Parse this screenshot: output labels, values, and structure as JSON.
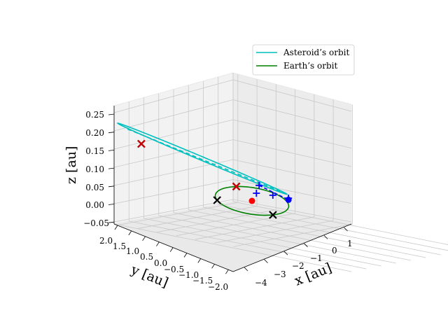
{
  "chart_data": {
    "type": "line3d",
    "title": "",
    "xlabel": "$x$ [au]",
    "ylabel": "$y$ [au]",
    "zlabel": "$z$ [au]",
    "x_label_text": "x [au]",
    "y_label_text": "y [au]",
    "z_label_text": "z [au]",
    "x_ticks": [
      "−4",
      "−3",
      "−2",
      "−1",
      "0",
      "1"
    ],
    "y_ticks": [
      "2.0",
      "1.5",
      "1.0",
      "0.5",
      "0.0",
      "−0.5",
      "−1.0",
      "−1.5",
      "−2.0"
    ],
    "z_ticks": [
      "0.25",
      "0.20",
      "0.15",
      "0.10",
      "0.05",
      "0.00",
      "−0.05"
    ],
    "xlim": [
      -4.6,
      1.3
    ],
    "ylim": [
      -2.0,
      2.0
    ],
    "zlim": [
      -0.05,
      0.27
    ],
    "legend_position": "top-right",
    "series": [
      {
        "name": "Asteroid’s orbit",
        "color": "#00bfbf",
        "style": "solid"
      },
      {
        "name": "Earth’s orbit",
        "color": "#008000",
        "style": "solid"
      }
    ],
    "asteroid_orbit": {
      "a": 2.45,
      "e": 0.61,
      "peri_x": 1.0,
      "peri_y": -0.45,
      "peri_z": 0.012,
      "aphelion": [
        -4.3,
        1.45,
        0.26
      ]
    },
    "earth_orbit": {
      "radius": 1.0,
      "center": [
        0,
        0,
        0
      ]
    },
    "asteroid_dashed": {
      "color": "#00bfbf",
      "style": "dashed"
    },
    "segment_dashed": {
      "color": "#0000ff",
      "style": "dashed"
    },
    "markers": {
      "sun": {
        "xyz": [
          0,
          0,
          0
        ],
        "color": "#ff0000",
        "shape": "circle"
      },
      "asteroid_position": {
        "xyz": [
          0.95,
          -0.55,
          0.0
        ],
        "color": "#0000ff",
        "shape": "circle"
      },
      "crosses_black": [
        [
          -0.35,
          -0.94,
          0
        ],
        [
          -0.8,
          0.6,
          0
        ]
      ],
      "crosses_red": [
        [
          -3.55,
          1.2,
          0.196
        ],
        [
          0.5,
          0.87,
          0
        ]
      ],
      "plus_blue": [
        [
          -0.55,
          -0.62,
          0.075
        ],
        [
          -0.65,
          -0.6,
          0.055
        ],
        [
          0.85,
          -0.1,
          0.0
        ],
        [
          1.05,
          -0.48,
          0.0
        ]
      ]
    }
  }
}
